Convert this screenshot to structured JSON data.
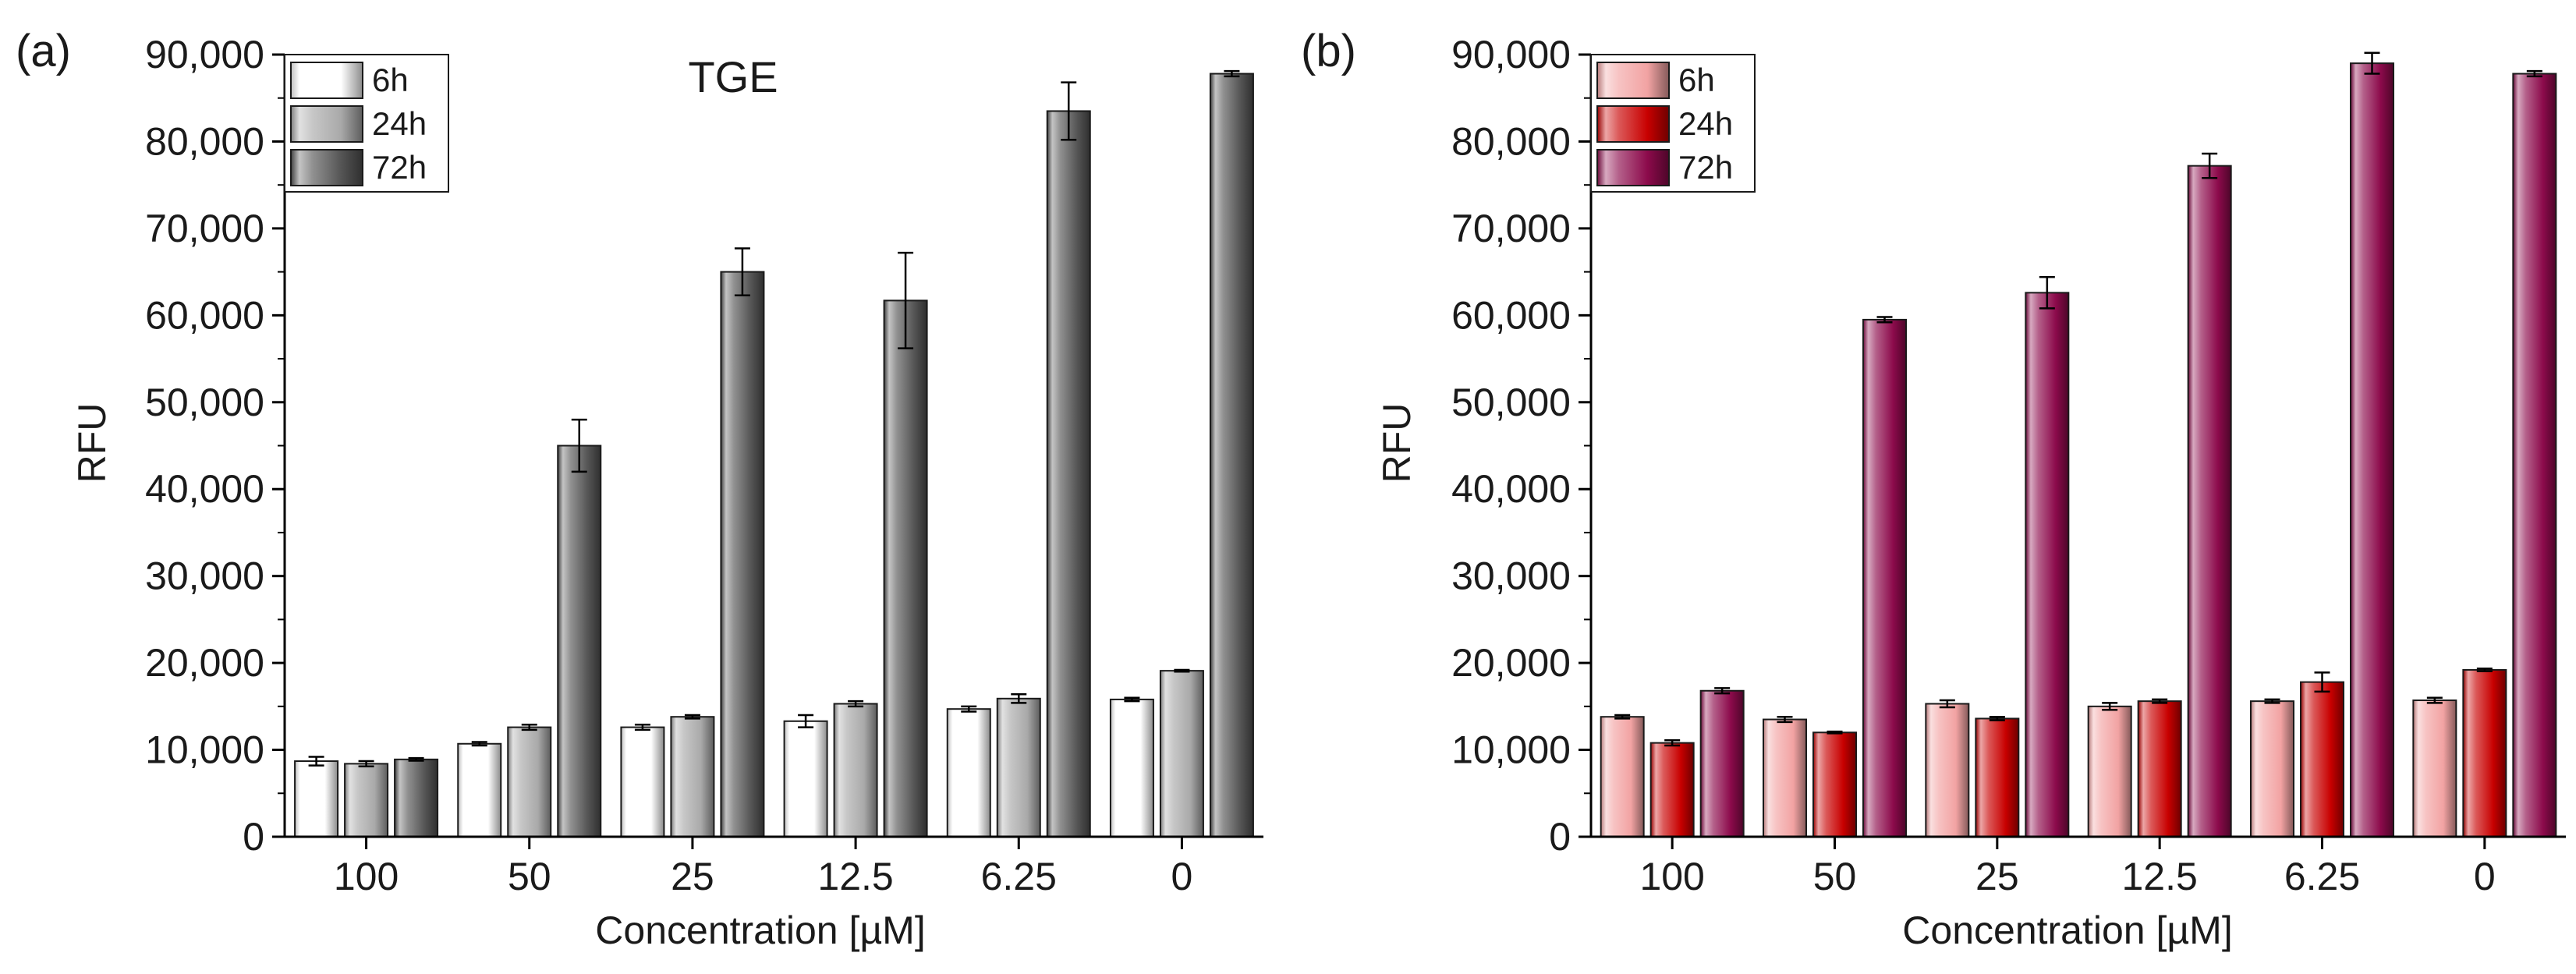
{
  "colors": {
    "panel_a_6h": "#ffffff",
    "panel_a_24h": "#a9a9a9",
    "panel_a_72h": "#555555",
    "panel_b_6h": "#f2a3a3",
    "panel_b_24h": "#c80000",
    "panel_b_72h": "#8c0a4b",
    "axis": "#000000"
  },
  "chart_data": [
    {
      "panel_label": "(a)",
      "type": "bar",
      "title": "TGE",
      "xlabel": "Concentration [µM]",
      "ylabel": "RFU",
      "ylim": [
        0,
        90000
      ],
      "yticks": [
        0,
        10000,
        20000,
        30000,
        40000,
        50000,
        60000,
        70000,
        80000,
        90000
      ],
      "ytick_labels": [
        "0",
        "10,000",
        "20,000",
        "30,000",
        "40,000",
        "50,000",
        "60,000",
        "70,000",
        "80,000",
        "90,000"
      ],
      "categories": [
        "100",
        "50",
        "25",
        "12.5",
        "6.25",
        "0"
      ],
      "legend_position": "top-left",
      "series": [
        {
          "name": "6h",
          "color_key": "panel_a_6h",
          "values": [
            8700,
            10700,
            12600,
            13300,
            14700,
            15800
          ],
          "errors": [
            500,
            200,
            300,
            700,
            300,
            200
          ]
        },
        {
          "name": "24h",
          "color_key": "panel_a_24h",
          "values": [
            8400,
            12600,
            13800,
            15300,
            15900,
            19100
          ],
          "errors": [
            300,
            300,
            200,
            300,
            500,
            100
          ]
        },
        {
          "name": "72h",
          "color_key": "panel_a_72h",
          "values": [
            8900,
            45000,
            65000,
            61700,
            83500,
            87800
          ],
          "errors": [
            150,
            3000,
            2700,
            5500,
            3300,
            300
          ]
        }
      ]
    },
    {
      "panel_label": "(b)",
      "type": "bar",
      "title": "",
      "xlabel": "Concentration [µM]",
      "ylabel": "RFU",
      "ylim": [
        0,
        90000
      ],
      "yticks": [
        0,
        10000,
        20000,
        30000,
        40000,
        50000,
        60000,
        70000,
        80000,
        90000
      ],
      "ytick_labels": [
        "0",
        "10,000",
        "20,000",
        "30,000",
        "40,000",
        "50,000",
        "60,000",
        "70,000",
        "80,000",
        "90,000"
      ],
      "categories": [
        "100",
        "50",
        "25",
        "12.5",
        "6.25",
        "0"
      ],
      "legend_position": "top-left",
      "series": [
        {
          "name": "6h",
          "color_key": "panel_b_6h",
          "values": [
            13800,
            13500,
            15300,
            15000,
            15600,
            15700
          ],
          "errors": [
            200,
            300,
            400,
            400,
            200,
            300
          ]
        },
        {
          "name": "24h",
          "color_key": "panel_b_24h",
          "values": [
            10800,
            12000,
            13600,
            15600,
            17800,
            19200
          ],
          "errors": [
            300,
            100,
            200,
            200,
            1100,
            150
          ]
        },
        {
          "name": "72h",
          "color_key": "panel_b_72h",
          "values": [
            16800,
            59500,
            62600,
            77200,
            89000,
            87800
          ],
          "errors": [
            300,
            300,
            1800,
            1400,
            1200,
            300
          ]
        }
      ]
    }
  ]
}
